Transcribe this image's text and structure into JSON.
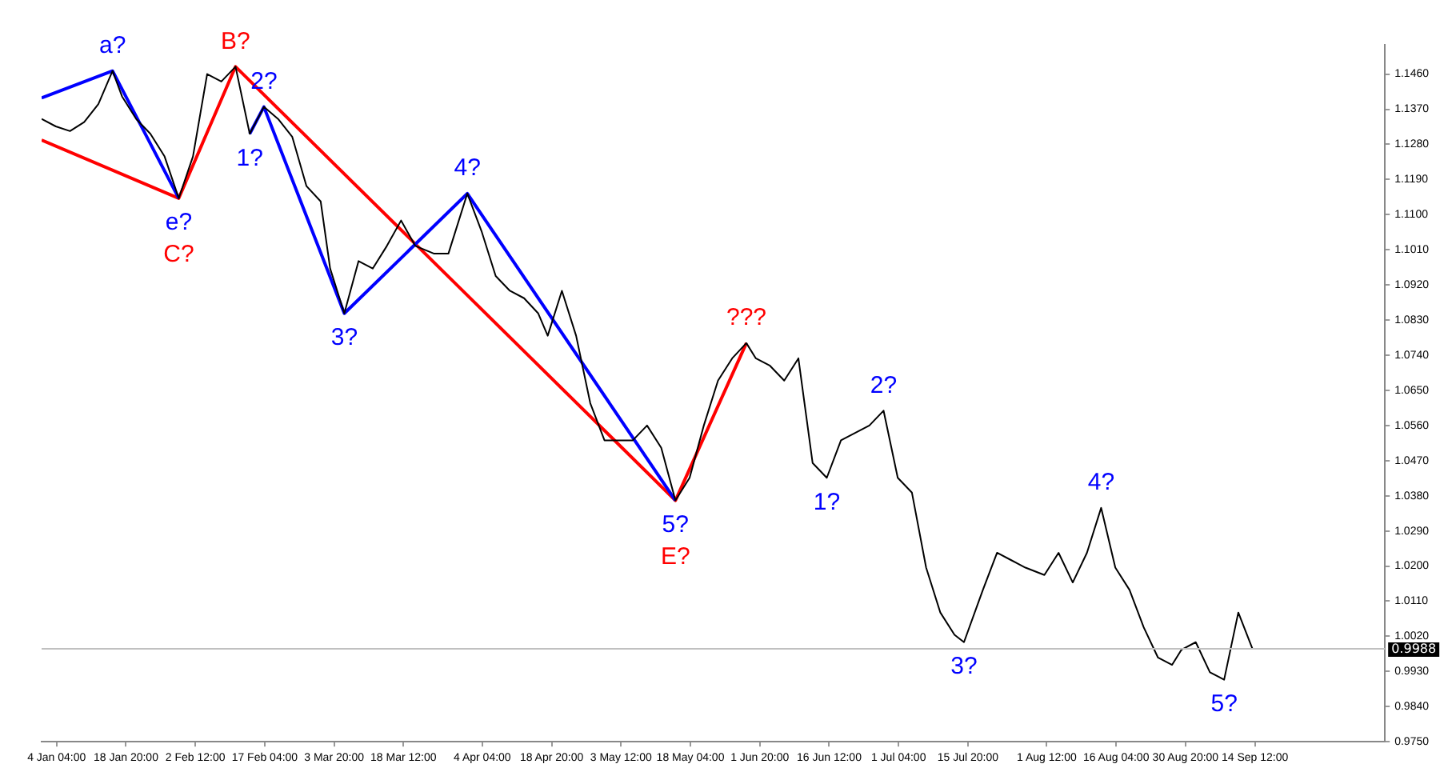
{
  "chart_data": {
    "type": "line",
    "marker": "none",
    "grid": false,
    "legend": false,
    "line_style": "solid",
    "x": [
      "--01-01",
      "--01-04",
      "--01-07",
      "--01-10",
      "--01-13",
      "--01-16",
      "--01-18",
      "--01-21",
      "--01-24",
      "--01-27",
      "--01-30",
      "--02-02",
      "--02-05",
      "--02-08",
      "--02-11",
      "--02-14",
      "--02-17",
      "--02-20",
      "--02-23",
      "--02-26",
      "--03-01",
      "--03-03",
      "--03-06",
      "--03-09",
      "--03-12",
      "--03-15",
      "--03-18",
      "--03-21",
      "--03-25",
      "--03-28",
      "--04-01",
      "--04-04",
      "--04-07",
      "--04-10",
      "--04-13",
      "--04-16",
      "--04-18",
      "--04-21",
      "--04-24",
      "--04-27",
      "--04-30",
      "--05-03",
      "--05-06",
      "--05-09",
      "--05-12",
      "--05-15",
      "--05-18",
      "--05-21",
      "--05-24",
      "--05-27",
      "--05-30",
      "--06-01",
      "--06-04",
      "--06-07",
      "--06-10",
      "--06-13",
      "--06-16",
      "--06-19",
      "--06-22",
      "--06-25",
      "--06-28",
      "--07-01",
      "--07-04",
      "--07-07",
      "--07-10",
      "--07-13",
      "--07-15",
      "--07-19",
      "--07-22",
      "--07-25",
      "--07-28",
      "--08-01",
      "--08-04",
      "--08-07",
      "--08-10",
      "--08-13",
      "--08-16",
      "--08-19",
      "--08-22",
      "--08-25",
      "--08-28",
      "--08-30",
      "--09-02",
      "--09-05",
      "--09-08",
      "--09-11",
      "--09-14"
    ],
    "series": [
      {
        "color": "#000000",
        "values": [
          1.1345,
          1.1326,
          1.1314,
          1.1337,
          1.1383,
          1.1468,
          1.1403,
          1.1345,
          1.1307,
          1.1249,
          1.1142,
          1.1249,
          1.146,
          1.1441,
          1.1479,
          1.1307,
          1.1376,
          1.1345,
          1.1299,
          1.1173,
          1.1134,
          1.0962,
          1.0847,
          1.0981,
          1.0962,
          1.102,
          1.1085,
          1.102,
          1.1,
          1.1,
          1.1154,
          1.1058,
          1.0943,
          1.0905,
          1.0886,
          1.0847,
          1.079,
          1.0905,
          1.079,
          1.0617,
          1.0522,
          1.0522,
          1.0522,
          1.056,
          1.0503,
          1.0368,
          1.0426,
          1.056,
          1.0675,
          1.0732,
          1.0771,
          1.0732,
          1.0713,
          1.0675,
          1.0732,
          1.0464,
          1.0426,
          1.0522,
          1.0541,
          1.056,
          1.0598,
          1.0426,
          1.0388,
          1.0196,
          1.0081,
          1.0024,
          1.0005,
          1.0139,
          1.0234,
          1.0215,
          1.0196,
          1.0177,
          1.0234,
          1.0158,
          1.0234,
          1.0349,
          1.0196,
          1.0139,
          1.0043,
          0.9966,
          0.9947,
          0.9986,
          1.0005,
          0.9928,
          0.9909,
          1.0081,
          0.9988
        ]
      },
      {
        "color": "#0000ff",
        "x": [
          "--01-01",
          "--01-16",
          "--01-30"
        ],
        "values": [
          1.1399,
          1.1468,
          1.1142
        ]
      },
      {
        "color": "#0000ff",
        "x": [
          "--02-14",
          "--02-17",
          "--03-06",
          "--04-01",
          "--05-15"
        ],
        "values": [
          1.1307,
          1.1376,
          1.0847,
          1.1154,
          1.0368
        ]
      },
      {
        "color": "#ff0000",
        "x": [
          "--01-01",
          "--01-30",
          "--02-11",
          "--05-15",
          "--05-30"
        ],
        "values": [
          1.1291,
          1.1142,
          1.1479,
          1.0368,
          1.0771
        ]
      }
    ],
    "annotations": [
      {
        "text": "a?",
        "x": "--01-16",
        "y": 1.1468
      },
      {
        "text": "e?",
        "x": "--01-30",
        "y": 1.1142
      },
      {
        "text": "C?",
        "x": "--01-30",
        "y": 1.1142
      },
      {
        "text": "B?",
        "x": "--02-11",
        "y": 1.1479
      },
      {
        "text": "1?",
        "x": "--02-14",
        "y": 1.1307
      },
      {
        "text": "2?",
        "x": "--02-17",
        "y": 1.1376
      },
      {
        "text": "3?",
        "x": "--03-06",
        "y": 1.0847
      },
      {
        "text": "4?",
        "x": "--04-01",
        "y": 1.1154
      },
      {
        "text": "5?",
        "x": "--05-15",
        "y": 1.0368
      },
      {
        "text": "E?",
        "x": "--05-15",
        "y": 1.0368
      },
      {
        "text": "???",
        "x": "--05-30",
        "y": 1.0771
      },
      {
        "text": "1?",
        "x": "--06-16",
        "y": 1.0426
      },
      {
        "text": "2?",
        "x": "--06-28",
        "y": 1.0598
      },
      {
        "text": "3?",
        "x": "--07-15",
        "y": 1.0005
      },
      {
        "text": "4?",
        "x": "--08-13",
        "y": 1.0349
      },
      {
        "text": "5?",
        "x": "--09-08",
        "y": 0.9909
      }
    ],
    "ref_lines": [
      {
        "axis": "y",
        "value": 0.9988,
        "label": "0.9988",
        "color": "#c0c0c0"
      }
    ],
    "xlim": [
      "--01-01",
      "--10-12"
    ],
    "xticks": [
      {
        "value": "--01-04T04:00",
        "label": "4 Jan 04:00"
      },
      {
        "value": "--01-18T20:00",
        "label": "18 Jan 20:00"
      },
      {
        "value": "--02-02T12:00",
        "label": "2 Feb 12:00"
      },
      {
        "value": "--02-17T04:00",
        "label": "17 Feb 04:00"
      },
      {
        "value": "--03-03T20:00",
        "label": "3 Mar 20:00"
      },
      {
        "value": "--03-18T12:00",
        "label": "18 Mar 12:00"
      },
      {
        "value": "--04-04T04:00",
        "label": "4 Apr 04:00"
      },
      {
        "value": "--04-18T20:00",
        "label": "18 Apr 20:00"
      },
      {
        "value": "--05-03T12:00",
        "label": "3 May 12:00"
      },
      {
        "value": "--05-18T04:00",
        "label": "18 May 04:00"
      },
      {
        "value": "--06-01T20:00",
        "label": "1 Jun 20:00"
      },
      {
        "value": "--06-16T12:00",
        "label": "16 Jun 12:00"
      },
      {
        "value": "--07-01T04:00",
        "label": "1 Jul 04:00"
      },
      {
        "value": "--07-15T20:00",
        "label": "15 Jul 20:00"
      },
      {
        "value": "--08-01T12:00",
        "label": "1 Aug 12:00"
      },
      {
        "value": "--08-16T04:00",
        "label": "16 Aug 04:00"
      },
      {
        "value": "--08-30T20:00",
        "label": "30 Aug 20:00"
      },
      {
        "value": "--09-14T12:00",
        "label": "14 Sep 12:00"
      }
    ],
    "ylim": [
      0.975,
      1.1535
    ],
    "yticks": [
      {
        "value": 0.975,
        "label": "0.9750"
      },
      {
        "value": 0.984,
        "label": "0.9840"
      },
      {
        "value": 0.993,
        "label": "0.9930"
      },
      {
        "value": 1.002,
        "label": "1.0020"
      },
      {
        "value": 1.011,
        "label": "1.0110"
      },
      {
        "value": 1.02,
        "label": "1.0200"
      },
      {
        "value": 1.029,
        "label": "1.0290"
      },
      {
        "value": 1.038,
        "label": "1.0380"
      },
      {
        "value": 1.047,
        "label": "1.0470"
      },
      {
        "value": 1.056,
        "label": "1.0560"
      },
      {
        "value": 1.065,
        "label": "1.0650"
      },
      {
        "value": 1.074,
        "label": "1.0740"
      },
      {
        "value": 1.083,
        "label": "1.0830"
      },
      {
        "value": 1.092,
        "label": "1.0920"
      },
      {
        "value": 1.101,
        "label": "1.1010"
      },
      {
        "value": 1.11,
        "label": "1.1100"
      },
      {
        "value": 1.119,
        "label": "1.1190"
      },
      {
        "value": 1.128,
        "label": "1.1280"
      },
      {
        "value": 1.137,
        "label": "1.1370"
      },
      {
        "value": 1.146,
        "label": "1.1460"
      }
    ]
  }
}
